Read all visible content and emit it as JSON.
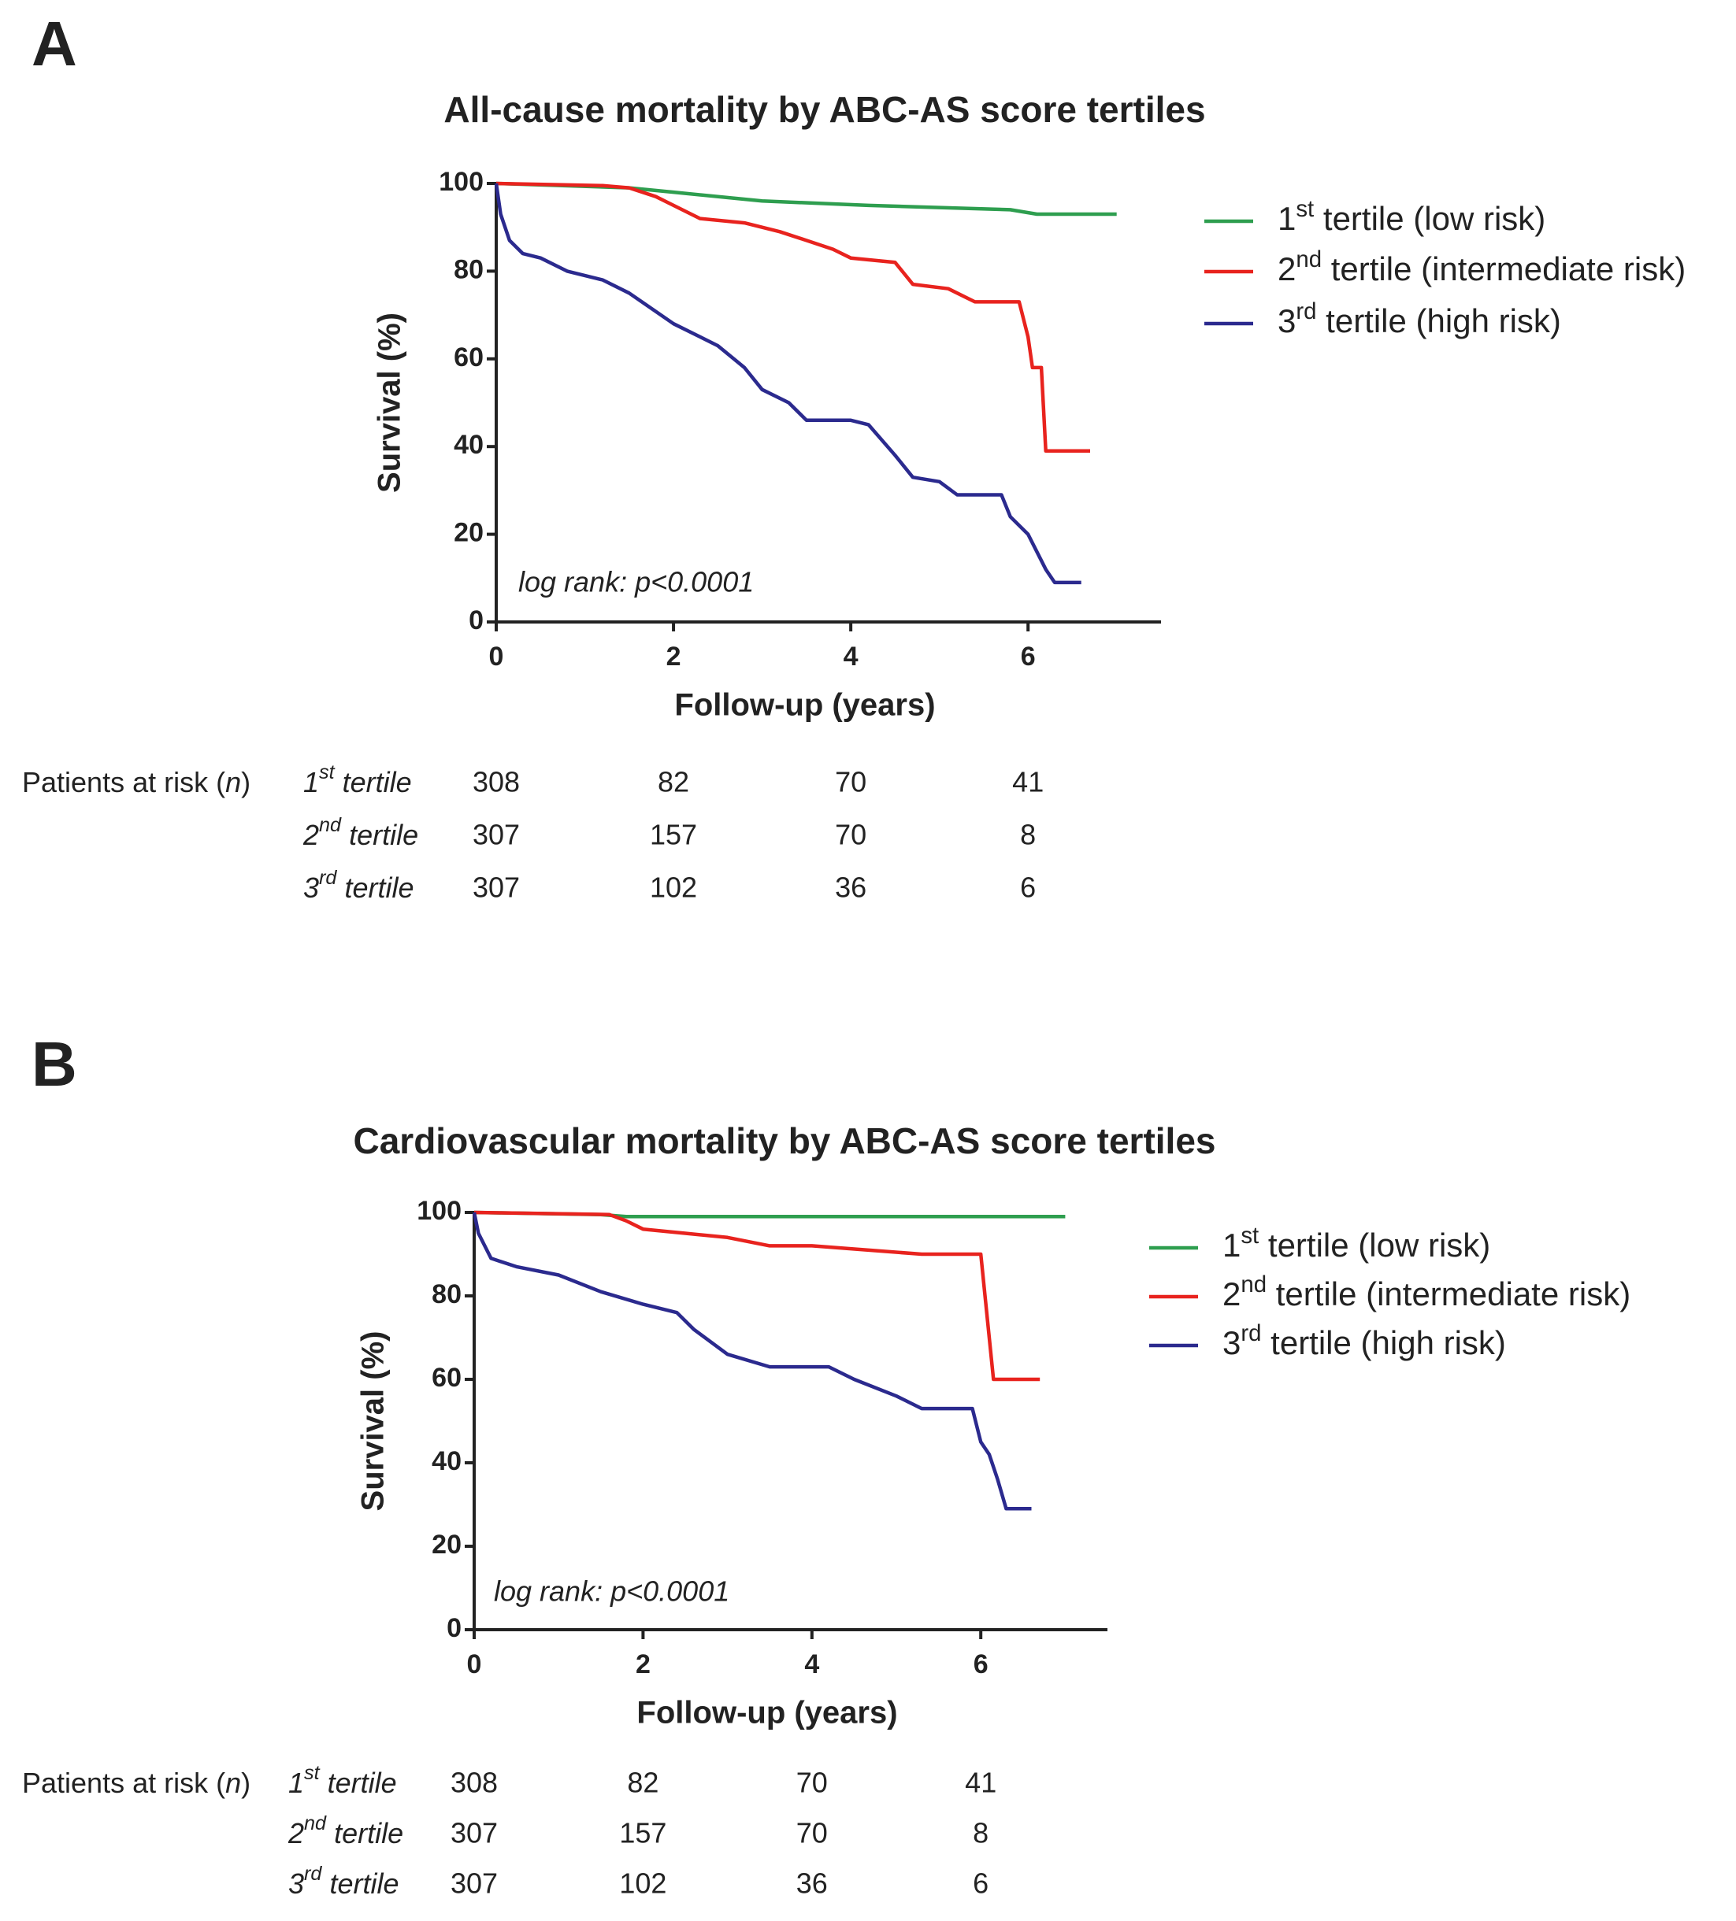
{
  "chart_data": [
    {
      "type": "line",
      "panel": "A",
      "title": "All-cause mortality by ABC-AS score tertiles",
      "x_label": "Follow-up (years)",
      "y_label": "Survival (%)",
      "annotation": "log rank: p<0.0001",
      "xlim": [
        0,
        7.5
      ],
      "ylim": [
        0,
        100
      ],
      "xticks": [
        0,
        2,
        4,
        6
      ],
      "yticks": [
        0,
        20,
        40,
        60,
        80,
        100
      ],
      "series": [
        {
          "name": "1st tertile (low risk)",
          "color": "#2e9e4f",
          "x": [
            0,
            1.5,
            2,
            3,
            4.2,
            5.8,
            6.1,
            7
          ],
          "values": [
            100,
            99,
            98,
            96,
            95,
            94,
            93,
            93
          ]
        },
        {
          "name": "2nd tertile (intermediate risk)",
          "color": "#e8231e",
          "x": [
            0,
            1.2,
            1.5,
            1.8,
            2,
            2.3,
            2.8,
            3.2,
            3.5,
            3.8,
            4,
            4.5,
            4.7,
            5.1,
            5.4,
            5.9,
            6,
            6.05,
            6.15,
            6.2,
            6.7
          ],
          "values": [
            100,
            99.5,
            99,
            97,
            95,
            92,
            91,
            89,
            87,
            85,
            83,
            82,
            77,
            76,
            73,
            73,
            65,
            58,
            58,
            39,
            39
          ]
        },
        {
          "name": "3rd tertile (high risk)",
          "color": "#2b2a8e",
          "x": [
            0,
            0.05,
            0.15,
            0.3,
            0.5,
            0.8,
            1.2,
            1.5,
            2,
            2.3,
            2.5,
            2.8,
            3,
            3.3,
            3.5,
            4,
            4.2,
            4.5,
            4.7,
            5,
            5.2,
            5.7,
            5.8,
            6,
            6.2,
            6.3,
            6.6
          ],
          "values": [
            100,
            93,
            87,
            84,
            83,
            80,
            78,
            75,
            68,
            65,
            63,
            58,
            53,
            50,
            46,
            46,
            45,
            38,
            33,
            32,
            29,
            29,
            24,
            20,
            12,
            9,
            9
          ]
        }
      ],
      "risk_table": {
        "label": "Patients at risk (n)",
        "rows": [
          {
            "name": "1st tertile",
            "counts": [
              308,
              82,
              70,
              41
            ]
          },
          {
            "name": "2nd tertile",
            "counts": [
              307,
              157,
              70,
              8
            ]
          },
          {
            "name": "3rd tertile",
            "counts": [
              307,
              102,
              36,
              6
            ]
          }
        ]
      }
    },
    {
      "type": "line",
      "panel": "B",
      "title": "Cardiovascular mortality by ABC-AS score tertiles",
      "x_label": "Follow-up (years)",
      "y_label": "Survival (%)",
      "annotation": "log rank: p<0.0001",
      "xlim": [
        0,
        7.5
      ],
      "ylim": [
        0,
        100
      ],
      "xticks": [
        0,
        2,
        4,
        6
      ],
      "yticks": [
        0,
        20,
        40,
        60,
        80,
        100
      ],
      "series": [
        {
          "name": "1st tertile (low risk)",
          "color": "#2e9e4f",
          "x": [
            0,
            1.5,
            1.8,
            7
          ],
          "values": [
            100,
            99.5,
            99,
            99
          ]
        },
        {
          "name": "2nd tertile (intermediate risk)",
          "color": "#e8231e",
          "x": [
            0,
            1.6,
            1.8,
            2,
            2.5,
            3,
            3.5,
            4,
            5.3,
            6,
            6.15,
            6.7
          ],
          "values": [
            100,
            99.5,
            98,
            96,
            95,
            94,
            92,
            92,
            90,
            90,
            60,
            60
          ]
        },
        {
          "name": "3rd tertile (high risk)",
          "color": "#2b2a8e",
          "x": [
            0,
            0.05,
            0.2,
            0.5,
            1,
            1.5,
            2,
            2.4,
            2.6,
            3,
            3.5,
            4.2,
            4.5,
            5,
            5.3,
            5.9,
            6,
            6.1,
            6.2,
            6.3,
            6.6
          ],
          "values": [
            100,
            95,
            89,
            87,
            85,
            81,
            78,
            76,
            72,
            66,
            63,
            63,
            60,
            56,
            53,
            53,
            45,
            42,
            36,
            29,
            29
          ]
        }
      ],
      "risk_table": {
        "label": "Patients at risk (n)",
        "rows": [
          {
            "name": "1st tertile",
            "counts": [
              308,
              82,
              70,
              41
            ]
          },
          {
            "name": "2nd tertile",
            "counts": [
              307,
              157,
              70,
              8
            ]
          },
          {
            "name": "3rd tertile",
            "counts": [
              307,
              102,
              36,
              6
            ]
          }
        ]
      }
    }
  ]
}
